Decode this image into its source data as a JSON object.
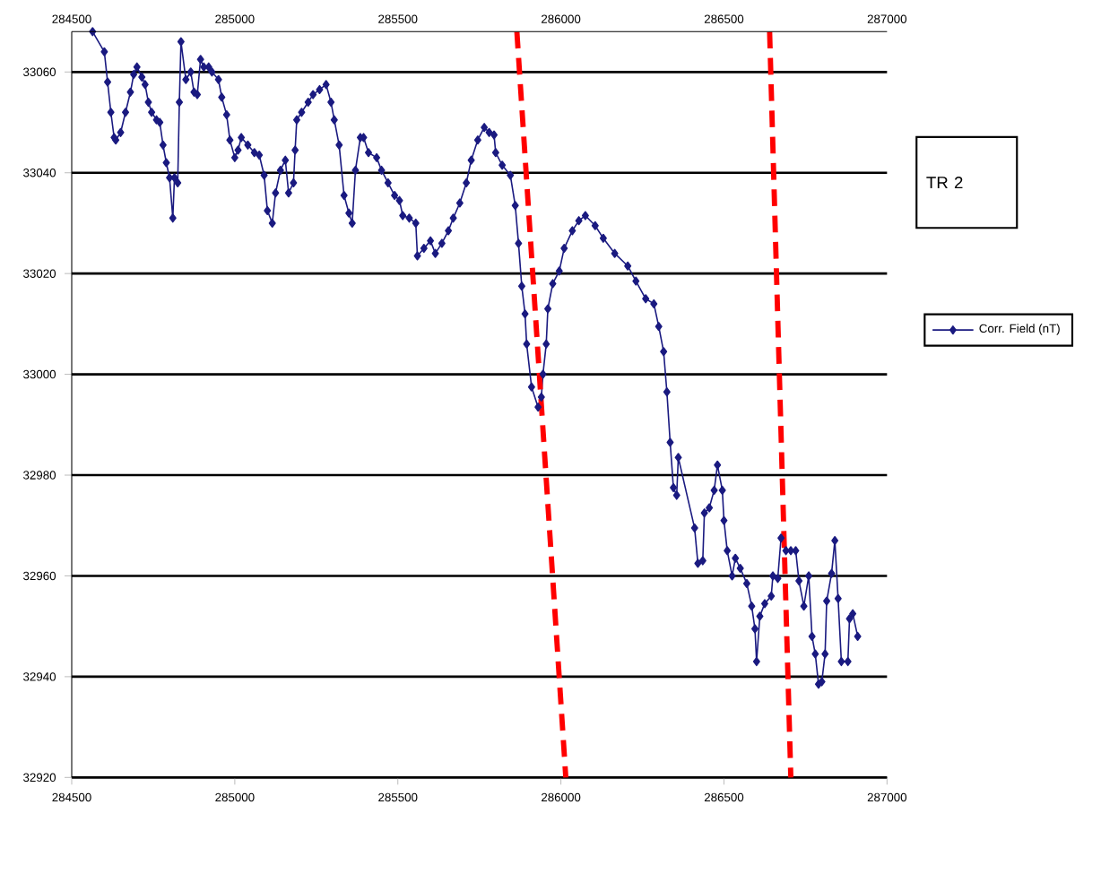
{
  "chart_data": {
    "type": "line",
    "xlim": [
      284500,
      287000
    ],
    "ylim": [
      32920,
      33068
    ],
    "xticks": [
      284500,
      285000,
      285500,
      286000,
      286500,
      287000
    ],
    "x2lim": [
      284500,
      287000
    ],
    "x2ticks": [
      284500,
      285000,
      285500,
      286000,
      286500,
      287000
    ],
    "yticks": [
      32920,
      32940,
      32960,
      32980,
      33000,
      33020,
      33040,
      33060
    ],
    "grid": "y",
    "legend": "right",
    "marker": "diamond",
    "annotations": [
      "TR 2"
    ],
    "series": [
      {
        "name": "Corr. Field (nT)",
        "color": "#1a1a80",
        "x": [
          284564,
          284600,
          284610,
          284620,
          284630,
          284635,
          284650,
          284665,
          284680,
          284690,
          284700,
          284715,
          284725,
          284735,
          284745,
          284760,
          284770,
          284780,
          284790,
          284800,
          284810,
          284815,
          284825,
          284830,
          284835,
          284850,
          284865,
          284875,
          284885,
          284895,
          284905,
          284920,
          284930,
          284950,
          284960,
          284975,
          284985,
          285000,
          285010,
          285020,
          285040,
          285060,
          285075,
          285090,
          285100,
          285115,
          285125,
          285140,
          285155,
          285165,
          285180,
          285185,
          285190,
          285205,
          285225,
          285240,
          285260,
          285280,
          285295,
          285305,
          285320,
          285335,
          285350,
          285360,
          285370,
          285385,
          285395,
          285410,
          285435,
          285450,
          285470,
          285490,
          285505,
          285515,
          285535,
          285555,
          285560,
          285580,
          285600,
          285615,
          285635,
          285655,
          285670,
          285690,
          285710,
          285725,
          285745,
          285765,
          285780,
          285795,
          285800,
          285820,
          285845,
          285860,
          285870,
          285880,
          285890,
          285895,
          285910,
          285930,
          285940,
          285945,
          285955,
          285960,
          285975,
          285995,
          286010,
          286035,
          286055,
          286075,
          286105,
          286130,
          286165,
          286205,
          286230,
          286260,
          286285,
          286300,
          286315,
          286325,
          286335,
          286345,
          286355,
          286360,
          286410,
          286420,
          286435,
          286440,
          286455,
          286470,
          286480,
          286495,
          286500,
          286510,
          286525,
          286535,
          286550,
          286570,
          286585,
          286595,
          286600,
          286610,
          286625,
          286645,
          286650,
          286665,
          286675,
          286690,
          286705,
          286720,
          286730,
          286745,
          286760,
          286770,
          286780,
          286790,
          286800,
          286810,
          286815,
          286830,
          286840,
          286850,
          286860,
          286880,
          286885,
          286895,
          286910
        ],
        "values": [
          33068,
          33064,
          33058,
          33052,
          33047,
          33046.5,
          33048,
          33052,
          33056,
          33059.5,
          33061,
          33059,
          33057.5,
          33054,
          33052,
          33050.5,
          33050,
          33045.5,
          33042,
          33039,
          33031,
          33039,
          33038,
          33054,
          33066,
          33058.5,
          33060,
          33056,
          33055.5,
          33062.5,
          33061,
          33061,
          33060,
          33058.5,
          33055,
          33051.5,
          33046.5,
          33043,
          33044.5,
          33047,
          33045.5,
          33044,
          33043.5,
          33039.5,
          33032.5,
          33030,
          33036,
          33040.5,
          33042.5,
          33036,
          33038,
          33044.5,
          33050.5,
          33052,
          33054,
          33055.5,
          33056.5,
          33057.5,
          33054,
          33050.5,
          33045.5,
          33035.5,
          33032,
          33030,
          33040.5,
          33047,
          33047,
          33044,
          33043,
          33040.5,
          33038,
          33035.5,
          33034.5,
          33031.5,
          33031,
          33030,
          33023.5,
          33025,
          33026.5,
          33024,
          33026,
          33028.5,
          33031,
          33034,
          33038,
          33042.5,
          33046.5,
          33049,
          33048,
          33047.5,
          33044,
          33041.5,
          33039.5,
          33033.5,
          33026,
          33017.5,
          33012,
          33006,
          32997.5,
          32993.5,
          32995.5,
          33000,
          33006,
          33013,
          33018,
          33020.5,
          33025,
          33028.5,
          33030.5,
          33031.5,
          33029.5,
          33027,
          33024,
          33021.5,
          33018.5,
          33015,
          33014,
          33009.5,
          33004.5,
          32996.5,
          32986.5,
          32977.5,
          32976,
          32983.5,
          32969.5,
          32962.5,
          32963,
          32972.5,
          32973.5,
          32977,
          32982,
          32977,
          32971,
          32965,
          32960,
          32963.5,
          32961.5,
          32958.5,
          32954,
          32949.5,
          32943,
          32952,
          32954.5,
          32956,
          32960,
          32959.5,
          32967.5,
          32965,
          32965,
          32965,
          32959,
          32954,
          32960,
          32948,
          32944.5,
          32938.5,
          32939,
          32944.5,
          32955,
          32960.5,
          32967,
          32955.5,
          32943,
          32943,
          32951.5,
          32952.5,
          32948
        ]
      },
      {
        "type": "line",
        "color": "#ff0000",
        "line_style": "dashed",
        "marker": "none",
        "x": [
          285865,
          286015
        ],
        "values": [
          33068,
          32920
        ]
      },
      {
        "type": "line",
        "color": "#ff0000",
        "line_style": "dashed",
        "marker": "none",
        "x": [
          286640,
          286705
        ],
        "values": [
          33068,
          32920
        ]
      }
    ]
  }
}
